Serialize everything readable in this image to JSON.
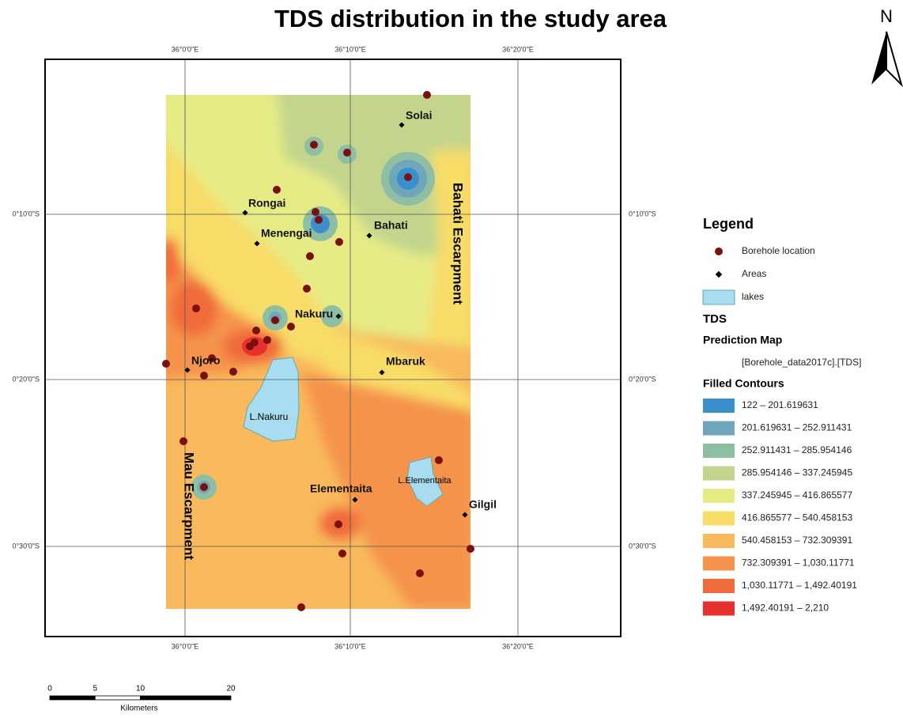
{
  "title": "TDS distribution in the study area",
  "north": "N",
  "graticule": {
    "top": [
      "36°0'0\"E",
      "36°10'0\"E",
      "36°20'0\"E"
    ],
    "left": [
      "0°10'0\"S",
      "0°20'0\"S",
      "0°30'0\"S"
    ]
  },
  "places": [
    "Solai",
    "Rongai",
    "Menengai",
    "Bahati",
    "Nakuru",
    "Njoro",
    "Mbaruk",
    "Elementaita",
    "Gilgil"
  ],
  "features": {
    "east_escarpment": "Bahati Escarpment",
    "west_escarpment": "Mau Escarpment",
    "lake_1": "L.Nakuru",
    "lake_2": "L.Elementaita"
  },
  "legend": {
    "title": "Legend",
    "items": [
      {
        "label": "Borehole location",
        "color": "#7a1010"
      },
      {
        "label": "Areas",
        "color": "#000000"
      },
      {
        "label": "lakes",
        "color": "#a8dcf0"
      }
    ],
    "layer": "TDS",
    "renderer": "Prediction Map",
    "field": "[Borehole_data2017c].[TDS]",
    "contours_title": "Filled Contours",
    "classes": [
      {
        "label": "122 – 201.619631",
        "color": "#3b8fcc"
      },
      {
        "label": "201.619631 – 252.911431",
        "color": "#6fa6bb"
      },
      {
        "label": "252.911431 – 285.954146",
        "color": "#8fbfa3"
      },
      {
        "label": "285.954146 – 337.245945",
        "color": "#c3d58d"
      },
      {
        "label": "337.245945 – 416.865577",
        "color": "#e6eb86"
      },
      {
        "label": "416.865577 – 540.458153",
        "color": "#f8dc68"
      },
      {
        "label": "540.458153 – 732.309391",
        "color": "#f9b95c"
      },
      {
        "label": "732.309391 – 1,030.11771",
        "color": "#f5934c"
      },
      {
        "label": "1,030.11771 – 1,492.40191",
        "color": "#f06a3a"
      },
      {
        "label": "1,492.40191 – 2,210",
        "color": "#e8302e"
      }
    ]
  },
  "scale_bar": {
    "ticks": [
      0,
      5,
      10,
      20
    ],
    "unit": "Kilometers"
  }
}
